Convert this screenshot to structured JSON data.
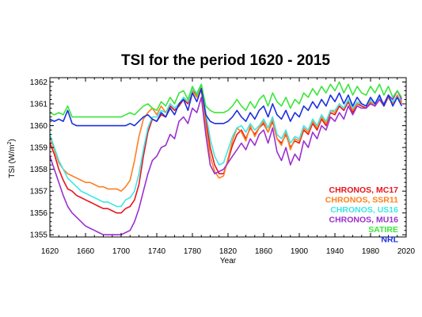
{
  "chart_data": {
    "type": "line",
    "title": "TSI for the period 1620 - 2015",
    "xlabel": "Year",
    "ylabel": "TSI (W/m",
    "ylabel_sup": "2",
    "ylabel_close": ")",
    "xlim": [
      1620,
      2020
    ],
    "ylim": [
      1354.9,
      1362.2
    ],
    "xticks": [
      1620,
      1660,
      1700,
      1740,
      1780,
      1820,
      1860,
      1900,
      1940,
      1980,
      2020
    ],
    "xtick_labels": [
      "1620",
      "1660",
      "1700",
      "1740",
      "1780",
      "1820",
      "1860",
      "1900",
      "1940",
      "1980",
      "2020"
    ],
    "yticks": [
      1355,
      1356,
      1357,
      1358,
      1359,
      1360,
      1361,
      1362
    ],
    "ytick_labels": [
      "1355",
      "1356",
      "1357",
      "1358",
      "1359",
      "1360",
      "1361",
      "1362"
    ],
    "legend_position": "lower-right",
    "series": [
      {
        "name": "CHRONOS, MC17",
        "color": "#e8141c",
        "x": [
          1620,
          1625,
          1630,
          1635,
          1640,
          1645,
          1650,
          1655,
          1660,
          1665,
          1670,
          1675,
          1680,
          1685,
          1690,
          1695,
          1700,
          1705,
          1710,
          1715,
          1720,
          1725,
          1730,
          1735,
          1740,
          1745,
          1750,
          1755,
          1760,
          1765,
          1770,
          1775,
          1780,
          1785,
          1790,
          1795,
          1800,
          1805,
          1810,
          1815,
          1820,
          1825,
          1830,
          1835,
          1840,
          1845,
          1850,
          1855,
          1860,
          1865,
          1870,
          1875,
          1880,
          1885,
          1890,
          1895,
          1900,
          1905,
          1910,
          1915,
          1920,
          1925,
          1930,
          1935,
          1940,
          1945,
          1950,
          1955,
          1960,
          1965,
          1970,
          1975,
          1980,
          1985,
          1990,
          1995,
          2000,
          2005,
          2010,
          2015
        ],
        "y": [
          1359.2,
          1358.7,
          1358.0,
          1357.5,
          1357.1,
          1357.0,
          1356.8,
          1356.7,
          1356.6,
          1356.5,
          1356.4,
          1356.3,
          1356.2,
          1356.2,
          1356.1,
          1356.0,
          1356.0,
          1356.2,
          1356.3,
          1356.6,
          1357.3,
          1358.6,
          1359.7,
          1360.3,
          1360.2,
          1360.5,
          1360.4,
          1360.9,
          1360.7,
          1360.9,
          1361.2,
          1361.0,
          1361.6,
          1361.4,
          1361.6,
          1360.3,
          1359.0,
          1358.2,
          1357.8,
          1357.8,
          1358.4,
          1359.1,
          1359.6,
          1359.8,
          1359.4,
          1359.9,
          1359.6,
          1359.9,
          1360.1,
          1359.7,
          1360.2,
          1359.4,
          1359.2,
          1359.6,
          1359.0,
          1359.3,
          1359.2,
          1359.8,
          1359.6,
          1360.1,
          1359.8,
          1360.3,
          1360.0,
          1360.6,
          1360.5,
          1360.9,
          1360.7,
          1361.1,
          1360.6,
          1361.0,
          1360.9,
          1360.8,
          1361.1,
          1360.9,
          1361.2,
          1360.9,
          1361.3,
          1361.0,
          1361.3,
          1361.1
        ]
      },
      {
        "name": "CHRONOS, SSR11",
        "color": "#ff7f1f",
        "x": [
          1620,
          1625,
          1630,
          1635,
          1640,
          1645,
          1650,
          1655,
          1660,
          1665,
          1670,
          1675,
          1680,
          1685,
          1690,
          1695,
          1700,
          1705,
          1710,
          1715,
          1720,
          1725,
          1730,
          1735,
          1740,
          1745,
          1750,
          1755,
          1760,
          1765,
          1770,
          1775,
          1780,
          1785,
          1790,
          1795,
          1800,
          1805,
          1810,
          1815,
          1820,
          1825,
          1830,
          1835,
          1840,
          1845,
          1850,
          1855,
          1860,
          1865,
          1870,
          1875,
          1880,
          1885,
          1890,
          1895,
          1900,
          1905,
          1910,
          1915,
          1920,
          1925,
          1930,
          1935,
          1940,
          1945,
          1950,
          1955,
          1960,
          1965,
          1970,
          1975,
          1980,
          1985,
          1990,
          1995,
          2000,
          2005,
          2010,
          2015
        ],
        "y": [
          1359.5,
          1358.9,
          1358.3,
          1358.0,
          1357.8,
          1357.7,
          1357.6,
          1357.5,
          1357.4,
          1357.4,
          1357.3,
          1357.2,
          1357.2,
          1357.1,
          1357.1,
          1357.1,
          1357.0,
          1357.2,
          1357.5,
          1358.4,
          1359.5,
          1360.3,
          1360.6,
          1360.8,
          1360.5,
          1360.9,
          1360.6,
          1361.0,
          1360.8,
          1361.0,
          1361.3,
          1361.1,
          1361.6,
          1361.3,
          1361.8,
          1360.0,
          1358.6,
          1357.9,
          1357.6,
          1357.7,
          1358.5,
          1359.3,
          1359.9,
          1359.7,
          1359.3,
          1360.0,
          1359.5,
          1359.9,
          1360.2,
          1359.7,
          1360.3,
          1359.4,
          1359.1,
          1359.7,
          1358.9,
          1359.4,
          1359.3,
          1359.9,
          1359.7,
          1360.2,
          1359.9,
          1360.4,
          1360.1,
          1360.7,
          1360.6,
          1361.0,
          1360.8,
          1361.2,
          1360.7,
          1361.0,
          1361.0,
          1360.9,
          1361.1,
          1360.9,
          1361.3,
          1360.9,
          1361.3,
          1361.0,
          1361.4,
          1361.0
        ]
      },
      {
        "name": "CHRONOS, US16",
        "color": "#3ee6e6",
        "x": [
          1620,
          1625,
          1630,
          1635,
          1640,
          1645,
          1650,
          1655,
          1660,
          1665,
          1670,
          1675,
          1680,
          1685,
          1690,
          1695,
          1700,
          1705,
          1710,
          1715,
          1720,
          1725,
          1730,
          1735,
          1740,
          1745,
          1750,
          1755,
          1760,
          1765,
          1770,
          1775,
          1780,
          1785,
          1790,
          1795,
          1800,
          1805,
          1810,
          1815,
          1820,
          1825,
          1830,
          1835,
          1840,
          1845,
          1850,
          1855,
          1860,
          1865,
          1870,
          1875,
          1880,
          1885,
          1890,
          1895,
          1900,
          1905,
          1910,
          1915,
          1920,
          1925,
          1930,
          1935,
          1940,
          1945,
          1950,
          1955,
          1960,
          1965,
          1970,
          1975,
          1980,
          1985,
          1990,
          1995,
          2000,
          2005,
          2010,
          2015
        ],
        "y": [
          1359.6,
          1359.0,
          1358.4,
          1358.0,
          1357.6,
          1357.4,
          1357.2,
          1357.0,
          1356.9,
          1356.8,
          1356.7,
          1356.6,
          1356.5,
          1356.5,
          1356.4,
          1356.3,
          1356.3,
          1356.6,
          1356.7,
          1357.0,
          1357.8,
          1358.9,
          1359.9,
          1360.4,
          1360.4,
          1360.7,
          1360.6,
          1361.0,
          1360.8,
          1361.0,
          1361.3,
          1361.1,
          1361.7,
          1361.5,
          1361.9,
          1360.6,
          1359.4,
          1358.6,
          1358.2,
          1358.3,
          1358.9,
          1359.5,
          1359.9,
          1360.0,
          1359.7,
          1360.1,
          1359.8,
          1360.0,
          1360.3,
          1359.9,
          1360.4,
          1359.6,
          1359.4,
          1359.8,
          1359.2,
          1359.5,
          1359.4,
          1360.0,
          1359.8,
          1360.3,
          1360.0,
          1360.5,
          1360.2,
          1360.7,
          1360.7,
          1361.0,
          1360.8,
          1361.2,
          1360.8,
          1361.1,
          1361.0,
          1360.9,
          1361.2,
          1361.0,
          1361.3,
          1361.0,
          1361.4,
          1361.1,
          1361.3,
          1361.2
        ]
      },
      {
        "name": "CHRONOS, MU16",
        "color": "#9a30d0",
        "x": [
          1620,
          1625,
          1630,
          1635,
          1640,
          1645,
          1650,
          1655,
          1660,
          1665,
          1670,
          1675,
          1680,
          1685,
          1690,
          1695,
          1700,
          1705,
          1710,
          1715,
          1720,
          1725,
          1730,
          1735,
          1740,
          1745,
          1750,
          1755,
          1760,
          1765,
          1770,
          1775,
          1780,
          1785,
          1790,
          1795,
          1800,
          1805,
          1810,
          1815,
          1820,
          1825,
          1830,
          1835,
          1840,
          1845,
          1850,
          1855,
          1860,
          1865,
          1870,
          1875,
          1880,
          1885,
          1890,
          1895,
          1900,
          1905,
          1910,
          1915,
          1920,
          1925,
          1930,
          1935,
          1940,
          1945,
          1950,
          1955,
          1960,
          1965,
          1970,
          1975,
          1980,
          1985,
          1990,
          1995,
          2000,
          2005,
          2010,
          2015
        ],
        "y": [
          1358.6,
          1358.0,
          1357.4,
          1356.8,
          1356.3,
          1356.0,
          1355.8,
          1355.6,
          1355.4,
          1355.3,
          1355.2,
          1355.1,
          1355.0,
          1355.0,
          1355.0,
          1355.0,
          1355.0,
          1355.1,
          1355.2,
          1355.6,
          1356.2,
          1357.0,
          1357.8,
          1358.4,
          1358.6,
          1359.0,
          1359.1,
          1359.6,
          1359.4,
          1360.2,
          1360.4,
          1360.1,
          1360.8,
          1360.6,
          1361.3,
          1359.6,
          1358.2,
          1357.8,
          1357.9,
          1358.0,
          1358.3,
          1358.6,
          1358.9,
          1359.2,
          1358.9,
          1359.4,
          1359.1,
          1359.6,
          1359.8,
          1359.2,
          1359.9,
          1358.8,
          1358.4,
          1359.0,
          1358.2,
          1358.7,
          1358.4,
          1359.3,
          1359.0,
          1359.7,
          1359.4,
          1360.0,
          1359.8,
          1360.4,
          1360.2,
          1360.6,
          1360.3,
          1360.9,
          1360.5,
          1360.9,
          1360.8,
          1360.8,
          1361.0,
          1360.9,
          1361.2,
          1361.0,
          1361.4,
          1361.2,
          1361.6,
          1361.2
        ]
      },
      {
        "name": "SATIRE",
        "color": "#3ae63a",
        "x": [
          1620,
          1625,
          1630,
          1635,
          1640,
          1645,
          1650,
          1655,
          1660,
          1665,
          1670,
          1675,
          1680,
          1685,
          1690,
          1695,
          1700,
          1705,
          1710,
          1715,
          1720,
          1725,
          1730,
          1735,
          1740,
          1745,
          1750,
          1755,
          1760,
          1765,
          1770,
          1775,
          1780,
          1785,
          1790,
          1795,
          1800,
          1805,
          1810,
          1815,
          1820,
          1825,
          1830,
          1835,
          1840,
          1845,
          1850,
          1855,
          1860,
          1865,
          1870,
          1875,
          1880,
          1885,
          1890,
          1895,
          1900,
          1905,
          1910,
          1915,
          1920,
          1925,
          1930,
          1935,
          1940,
          1945,
          1950,
          1955,
          1960,
          1965,
          1970,
          1975,
          1980,
          1985,
          1990,
          1995,
          2000,
          2005,
          2010,
          2015
        ],
        "y": [
          1360.6,
          1360.5,
          1360.6,
          1360.5,
          1360.9,
          1360.4,
          1360.4,
          1360.4,
          1360.4,
          1360.4,
          1360.4,
          1360.4,
          1360.4,
          1360.4,
          1360.4,
          1360.4,
          1360.4,
          1360.5,
          1360.6,
          1360.5,
          1360.7,
          1360.9,
          1361.0,
          1360.8,
          1360.7,
          1361.1,
          1360.9,
          1361.3,
          1361.0,
          1361.5,
          1361.6,
          1361.2,
          1361.8,
          1361.4,
          1361.9,
          1360.9,
          1360.7,
          1360.6,
          1360.6,
          1360.6,
          1360.7,
          1360.9,
          1361.2,
          1360.9,
          1360.7,
          1361.1,
          1360.8,
          1361.2,
          1361.4,
          1360.9,
          1361.5,
          1361.1,
          1360.9,
          1361.3,
          1360.8,
          1361.2,
          1361.0,
          1361.5,
          1361.3,
          1361.7,
          1361.4,
          1361.8,
          1361.5,
          1361.9,
          1361.6,
          1362.0,
          1361.5,
          1361.9,
          1361.4,
          1361.8,
          1361.5,
          1361.4,
          1361.8,
          1361.5,
          1361.9,
          1361.4,
          1361.8,
          1361.3,
          1361.6,
          1361.3
        ]
      },
      {
        "name": "NRL",
        "color": "#1c2fe0",
        "x": [
          1620,
          1625,
          1630,
          1635,
          1640,
          1645,
          1650,
          1655,
          1660,
          1665,
          1670,
          1675,
          1680,
          1685,
          1690,
          1695,
          1700,
          1705,
          1710,
          1715,
          1720,
          1725,
          1730,
          1735,
          1740,
          1745,
          1750,
          1755,
          1760,
          1765,
          1770,
          1775,
          1780,
          1785,
          1790,
          1795,
          1800,
          1805,
          1810,
          1815,
          1820,
          1825,
          1830,
          1835,
          1840,
          1845,
          1850,
          1855,
          1860,
          1865,
          1870,
          1875,
          1880,
          1885,
          1890,
          1895,
          1900,
          1905,
          1910,
          1915,
          1920,
          1925,
          1930,
          1935,
          1940,
          1945,
          1950,
          1955,
          1960,
          1965,
          1970,
          1975,
          1980,
          1985,
          1990,
          1995,
          2000,
          2005,
          2010,
          2015
        ],
        "y": [
          1360.3,
          1360.2,
          1360.3,
          1360.2,
          1360.7,
          1360.1,
          1360.0,
          1360.0,
          1360.0,
          1360.0,
          1360.0,
          1360.0,
          1360.0,
          1360.0,
          1360.0,
          1360.0,
          1360.0,
          1360.0,
          1360.1,
          1360.0,
          1360.2,
          1360.4,
          1360.5,
          1360.3,
          1360.2,
          1360.6,
          1360.4,
          1360.8,
          1360.5,
          1361.0,
          1361.2,
          1360.7,
          1361.5,
          1361.1,
          1361.7,
          1360.5,
          1360.2,
          1360.1,
          1360.1,
          1360.1,
          1360.2,
          1360.4,
          1360.7,
          1360.4,
          1360.2,
          1360.6,
          1360.3,
          1360.7,
          1360.9,
          1360.4,
          1361.0,
          1360.5,
          1360.3,
          1360.7,
          1360.2,
          1360.6,
          1360.4,
          1360.9,
          1360.7,
          1361.1,
          1360.8,
          1361.2,
          1360.9,
          1361.4,
          1361.1,
          1361.5,
          1361.0,
          1361.4,
          1360.9,
          1361.3,
          1361.0,
          1360.9,
          1361.3,
          1361.0,
          1361.4,
          1360.9,
          1361.4,
          1360.9,
          1361.3,
          1360.9
        ]
      }
    ]
  }
}
